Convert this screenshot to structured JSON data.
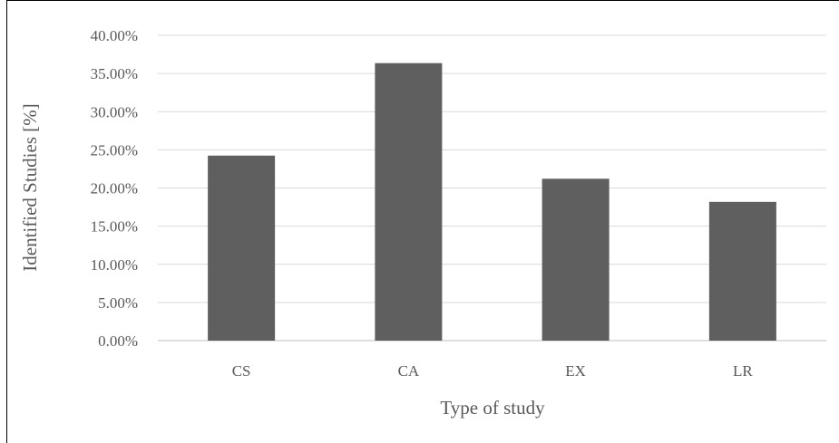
{
  "chart_data": {
    "type": "bar",
    "categories": [
      "CS",
      "CA",
      "EX",
      "LR"
    ],
    "values": [
      24.24,
      36.36,
      21.21,
      18.18
    ],
    "xlabel": "Type of study",
    "ylabel": "Identified Studies [%]",
    "ylim": [
      0,
      40
    ],
    "ytick_step": 5,
    "ytick_labels": [
      "0.00%",
      "5.00%",
      "10.00%",
      "15.00%",
      "20.00%",
      "25.00%",
      "30.00%",
      "35.00%",
      "40.00%"
    ],
    "grid": true,
    "bar_color": "#5f5f5f",
    "grid_color": "#d9d9d9"
  }
}
